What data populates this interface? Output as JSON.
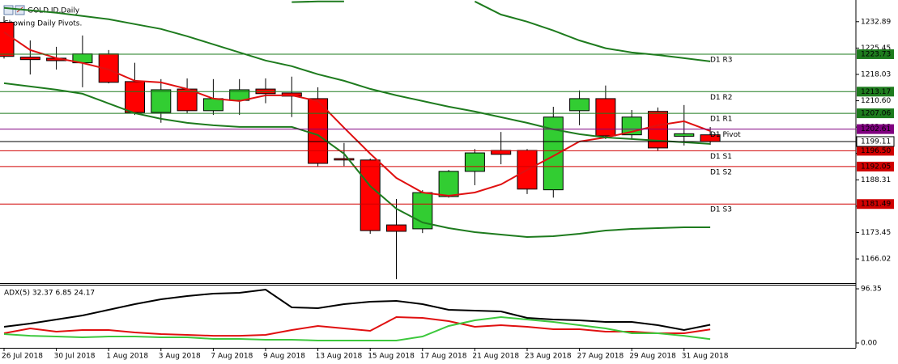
{
  "chart_data": [
    {
      "type": "candlestick",
      "title": "GOLD.ID,Daily",
      "subtitle": "Showing Daily Pivots.",
      "categories": [
        "26 Jul 2018",
        null,
        "30 Jul 2018",
        null,
        "1 Aug 2018",
        null,
        "3 Aug 2018",
        null,
        "7 Aug 2018",
        null,
        "9 Aug 2018",
        null,
        "13 Aug 2018",
        null,
        "15 Aug 2018",
        null,
        "17 Aug 2018",
        null,
        "21 Aug 2018",
        null,
        "23 Aug 2018",
        null,
        "27 Aug 2018",
        null,
        "29 Aug 2018",
        null,
        "31 Aug 2018",
        null
      ],
      "open": [
        1232.7,
        1222.9,
        1222.6,
        1221.3,
        1223.8,
        1216.0,
        1207.3,
        1213.9,
        1207.8,
        1210.7,
        1213.9,
        1212.8,
        1211.2,
        1194.3,
        1193.9,
        1175.6,
        1174.5,
        1183.6,
        1190.7,
        1196.6,
        1196.6,
        1185.5,
        1207.8,
        1211.2,
        1201.0,
        1207.6,
        1200.6,
        1201.0
      ],
      "high": [
        1234.4,
        1227.6,
        1225.8,
        1229.0,
        1224.9,
        1221.3,
        1216.7,
        1216.9,
        1216.7,
        1216.7,
        1216.9,
        1217.4,
        1214.4,
        1198.7,
        1194.3,
        1182.9,
        1185.4,
        1191.1,
        1197.0,
        1201.8,
        1197.0,
        1208.9,
        1213.5,
        1214.9,
        1208.0,
        1208.7,
        1209.4,
        1203.2
      ],
      "low": [
        1222.5,
        1218.0,
        1219.4,
        1214.4,
        1215.5,
        1206.6,
        1204.4,
        1207.1,
        1206.6,
        1206.6,
        1209.9,
        1206.0,
        1192.0,
        1192.2,
        1173.1,
        1160.3,
        1173.3,
        1183.3,
        1186.8,
        1192.7,
        1184.3,
        1183.3,
        1203.7,
        1199.8,
        1199.8,
        1196.4,
        1198.0,
        1198.2
      ],
      "close": [
        1223.1,
        1222.2,
        1221.9,
        1223.8,
        1215.8,
        1207.3,
        1213.7,
        1207.8,
        1211.2,
        1213.7,
        1212.6,
        1211.9,
        1192.95,
        1193.9,
        1174.0,
        1173.8,
        1184.7,
        1190.7,
        1195.9,
        1195.5,
        1185.7,
        1206.0,
        1211.2,
        1200.7,
        1206.0,
        1197.3,
        1201.3,
        1199.11
      ],
      "up_color": "#32cd32",
      "down_color": "#ff0000",
      "series": [
        {
          "color": "#e01010",
          "values": [
            1229.92,
            1224.9,
            1222.62,
            1221.25,
            1219.42,
            1216.23,
            1215.77,
            1213.95,
            1211.21,
            1210.52,
            1212.12,
            1212.12,
            1210.52,
            1202.99,
            1195.69,
            1188.85,
            1184.74,
            1183.83,
            1184.74,
            1187.02,
            1191.13,
            1195.01,
            1199.12,
            1200.26,
            1201.85,
            1203.68,
            1204.82,
            1202.08
          ]
        },
        {
          "color": "#1e7b1e",
          "values": [
            null,
            null,
            null,
            null,
            null,
            null,
            null,
            null,
            null,
            null,
            null,
            1238.4,
            1238.6,
            1238.6,
            null,
            null,
            null,
            null,
            1238.6,
            1234.9,
            1232.9,
            1230.4,
            1227.6,
            1225.4,
            1224.2,
            1223.5,
            1222.6,
            1221.7
          ]
        },
        {
          "color": "#1e7b1e",
          "values": [
            1236.77,
            1236.08,
            1235.4,
            1234.49,
            1233.57,
            1232.21,
            1230.84,
            1228.78,
            1226.5,
            1224.22,
            1221.94,
            1220.34,
            1218.06,
            1216.23,
            1213.95,
            1212.12,
            1210.52,
            1208.93,
            1207.56,
            1205.96,
            1204.36,
            1202.54,
            1201.17,
            1200.26,
            1199.8,
            1199.34,
            1198.89,
            1198.43
          ]
        },
        {
          "color": "#1e7b1e",
          "values": [
            1215.55,
            1214.63,
            1213.72,
            1212.58,
            1209.84,
            1207.1,
            1205.51,
            1204.36,
            1203.68,
            1203.22,
            1203.22,
            1203.22,
            1200.94,
            1195.69,
            1186.56,
            1180.17,
            1176.29,
            1174.7,
            1173.56,
            1172.87,
            1172.19,
            1172.42,
            1173.1,
            1174.01,
            1174.47,
            1174.7,
            1174.93,
            1174.93
          ]
        }
      ],
      "ylim": [
        1159.2,
        1239.0
      ],
      "yticks": [
        1232.89,
        1225.45,
        1218.03,
        {
          "value": 1210.6,
          "label": "1210.60"
        },
        1203.18,
        1195.76,
        1188.31,
        1180.89,
        1173.45,
        1166.02
      ],
      "pivots": [
        {
          "name": "D1 R3",
          "value": 1223.73,
          "color": "#1e7b1e"
        },
        {
          "name": "D1 R2",
          "value": 1213.17,
          "color": "#1e7b1e"
        },
        {
          "name": "D1 R1",
          "value": 1207.06,
          "color": "#1e7b1e"
        },
        {
          "name": "D1 Pivot",
          "value": 1202.61,
          "color": "#800080"
        },
        {
          "name": "D1 S1",
          "value": 1196.5,
          "value_label": "1196.50",
          "color": "#d00000"
        },
        {
          "name": "D1 S2",
          "value": 1192.05,
          "color": "#d00000"
        },
        {
          "name": "D1 S3",
          "value": 1181.49,
          "color": "#d00000"
        }
      ]
    },
    {
      "type": "line",
      "title": "ADX(5) 32.37 6.85 24.17",
      "series": [
        {
          "color": "#000000",
          "values": [
            28.8,
            34.5,
            41.7,
            48.9,
            59.0,
            69.1,
            77.7,
            83.5,
            87.8,
            89.2,
            95.0,
            63.3,
            61.9,
            69.1,
            73.4,
            74.8,
            69.1,
            59.0,
            57.6,
            56.1,
            44.6,
            41.7,
            40.3,
            37.4,
            37.4,
            31.7,
            23.0,
            32.37
          ]
        },
        {
          "color": "#e01010",
          "values": [
            17.3,
            25.9,
            20.1,
            23.0,
            23.0,
            18.7,
            15.8,
            14.4,
            12.9,
            12.9,
            14.4,
            23.0,
            30.2,
            25.9,
            21.6,
            46.0,
            44.6,
            38.8,
            28.8,
            31.7,
            28.8,
            24.5,
            24.5,
            20.1,
            20.1,
            17.3,
            17.3,
            24.17
          ]
        },
        {
          "color": "#3cc83c",
          "values": [
            15.8,
            12.9,
            11.5,
            10.1,
            11.5,
            11.5,
            10.1,
            10.1,
            7.2,
            7.2,
            5.8,
            5.8,
            4.3,
            4.3,
            4.3,
            4.3,
            11.5,
            30.2,
            40.3,
            46.0,
            41.7,
            37.4,
            31.7,
            25.9,
            17.3,
            17.3,
            12.9,
            6.85
          ]
        }
      ],
      "ylim": [
        -8.6,
        103.6
      ],
      "yticks": [
        96.35,
        {
          "value": 0,
          "label": "0.00"
        }
      ]
    }
  ]
}
